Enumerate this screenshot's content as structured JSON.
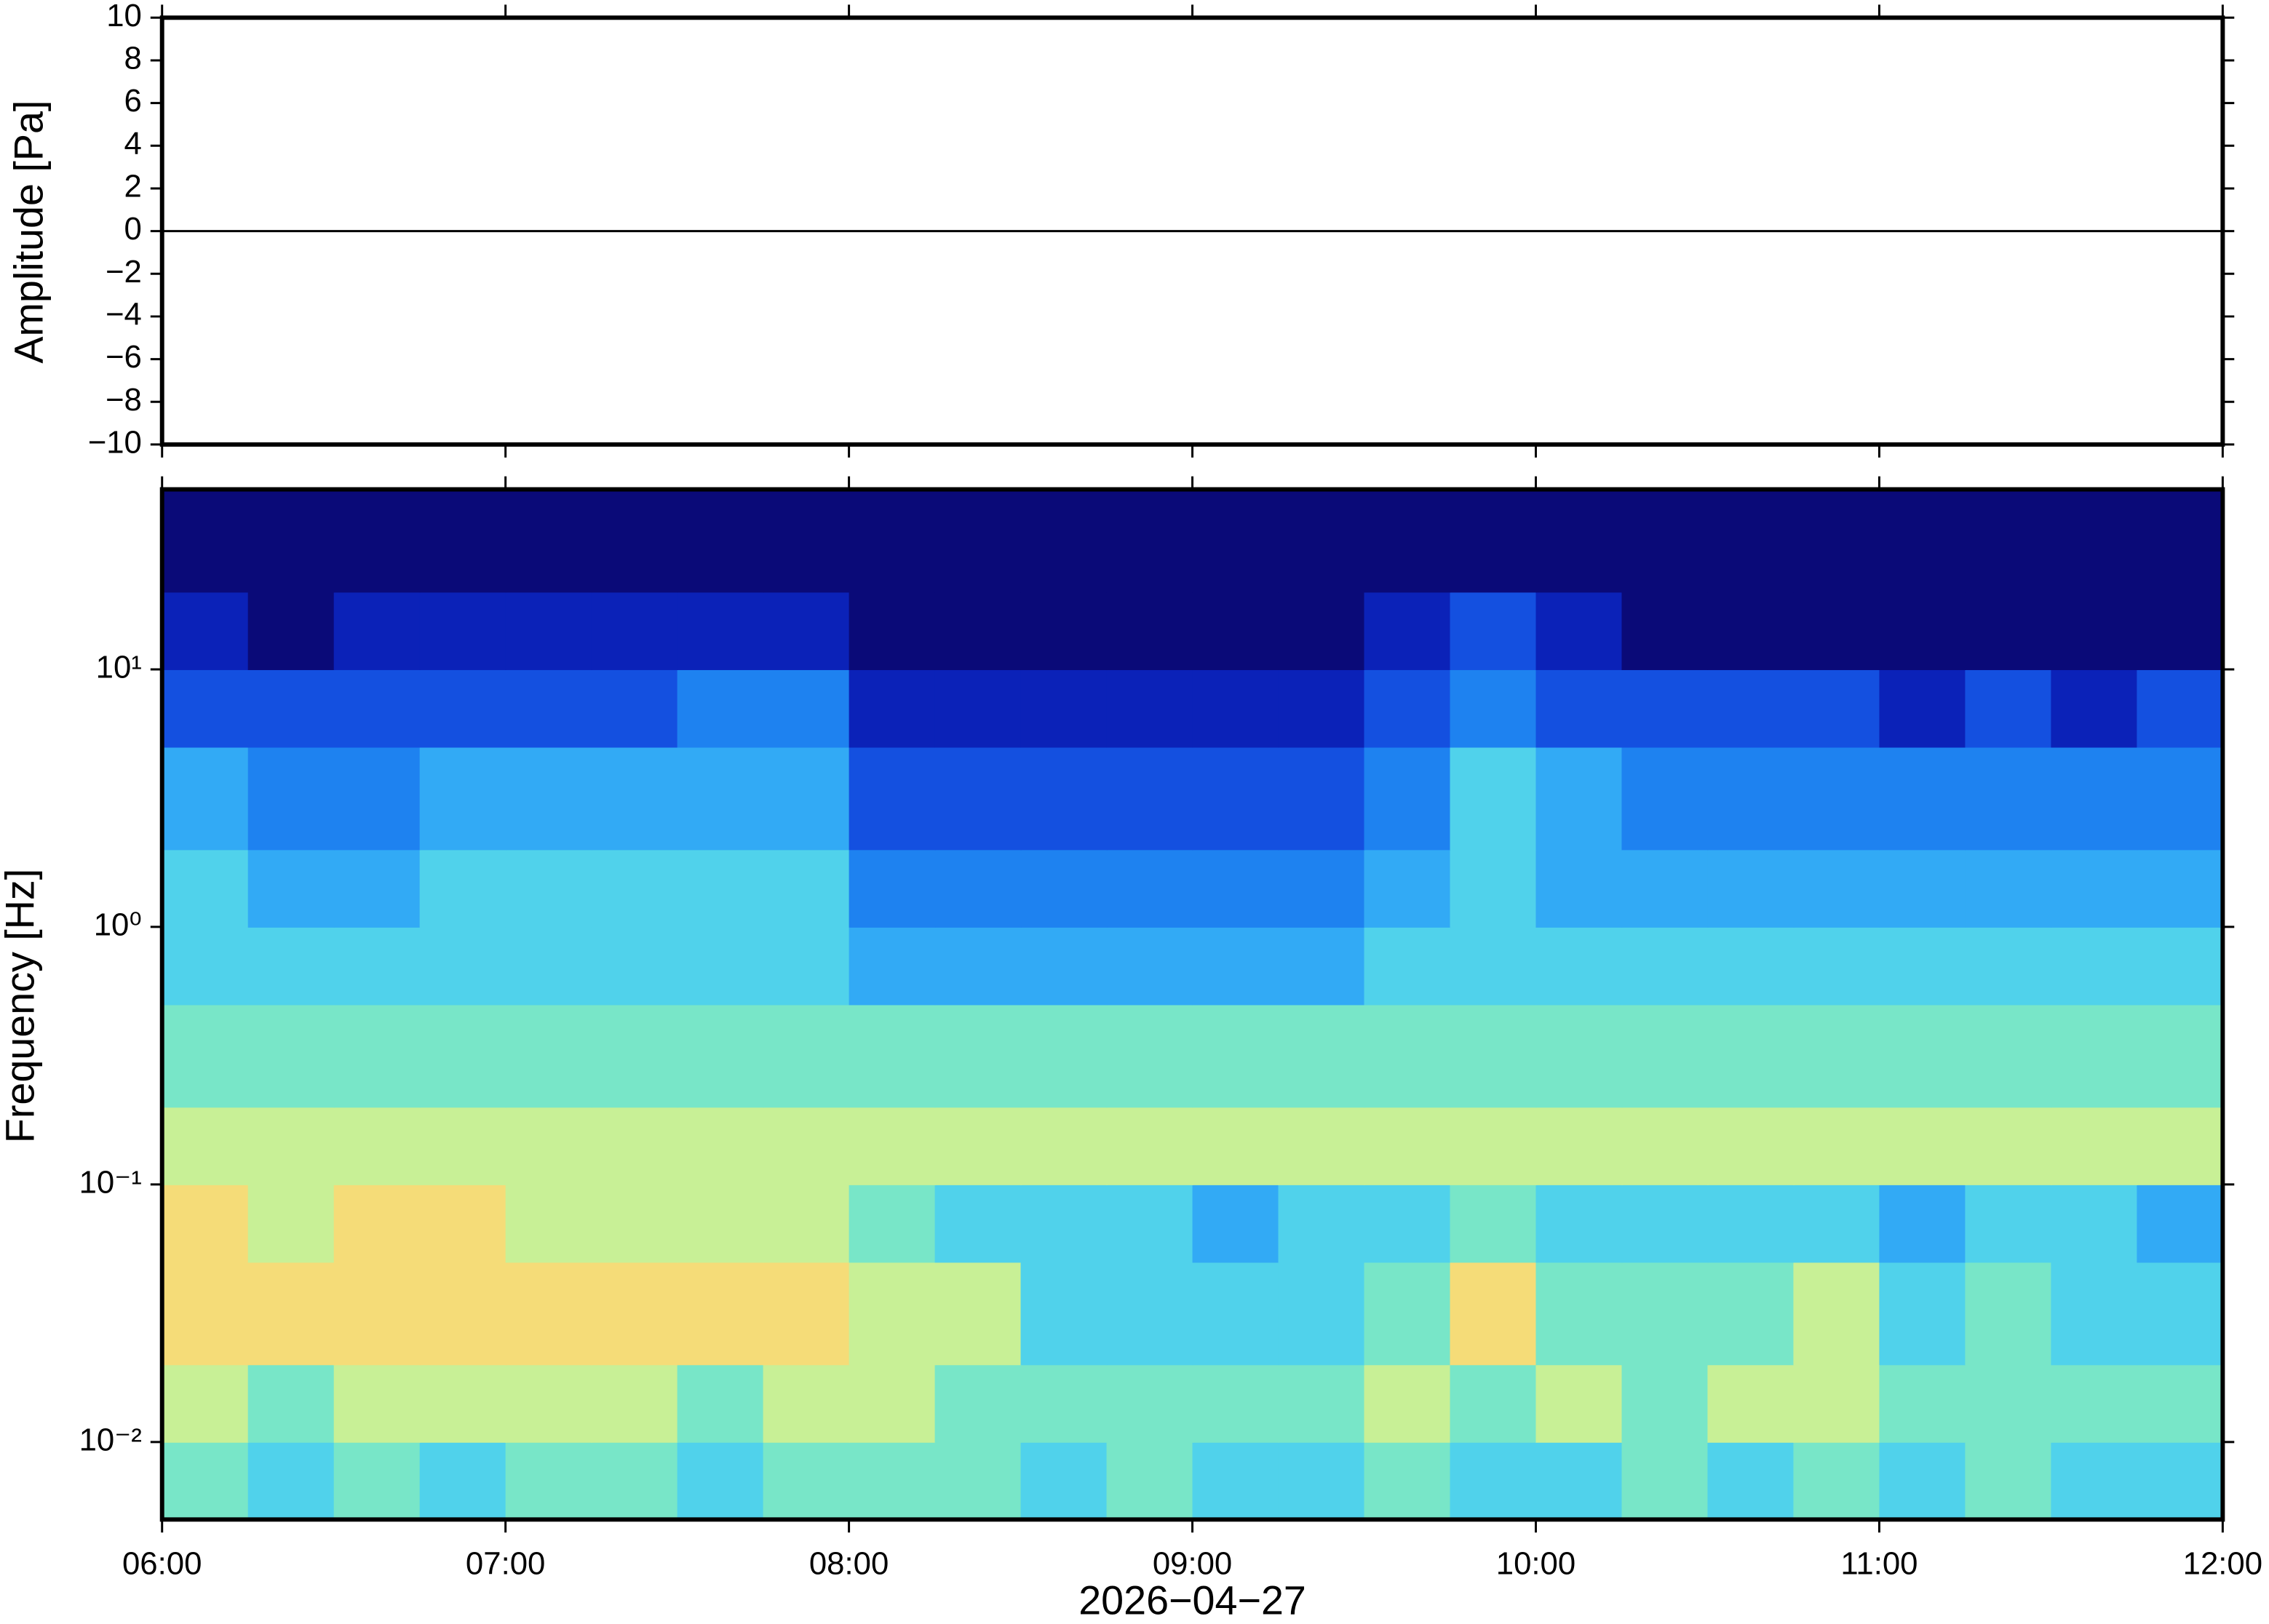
{
  "chart_data": [
    {
      "type": "line",
      "ylabel": "Amplitude [Pa]",
      "color": "#000000",
      "x": [
        6,
        7,
        8,
        9,
        10,
        11,
        12
      ],
      "values": [
        0,
        0,
        0,
        0,
        0,
        0,
        0
      ],
      "xlim": [
        6,
        12
      ],
      "xticks": [
        6,
        7,
        8,
        9,
        10,
        11,
        12
      ],
      "ylim": [
        -10,
        10
      ],
      "yticks": [
        {
          "value": -10,
          "label": "−10"
        },
        {
          "value": -8,
          "label": "−8"
        },
        {
          "value": -6,
          "label": "−6"
        },
        {
          "value": -4,
          "label": "−4"
        },
        {
          "value": -2,
          "label": "−2"
        },
        0,
        2,
        4,
        6,
        8,
        10
      ]
    },
    {
      "type": "heatmap",
      "ylabel": "Frequency [Hz]",
      "xlabel": "2026−04−27",
      "log_y": true,
      "xlim": [
        6,
        12
      ],
      "xticks": [
        {
          "value": 6,
          "label": "06:00"
        },
        {
          "value": 7,
          "label": "07:00"
        },
        {
          "value": 8,
          "label": "08:00"
        },
        {
          "value": 9,
          "label": "09:00"
        },
        {
          "value": 10,
          "label": "10:00"
        },
        {
          "value": 11,
          "label": "11:00"
        },
        {
          "value": 12,
          "label": "12:00"
        }
      ],
      "ylim": [
        0.005,
        50
      ],
      "yticks": [
        {
          "value": 0.01,
          "label": "10⁻²"
        },
        {
          "value": 0.1,
          "label": "10⁻¹"
        },
        {
          "value": 1,
          "label": "10⁰"
        },
        {
          "value": 10,
          "label": "10¹"
        }
      ],
      "x_edges": [
        6,
        6.25,
        6.5,
        6.75,
        7,
        7.25,
        7.5,
        7.75,
        8,
        8.25,
        8.5,
        8.75,
        9,
        9.25,
        9.5,
        9.75,
        10,
        10.25,
        10.5,
        10.75,
        11,
        11.25,
        11.5,
        11.75,
        12
      ],
      "y_edges": [
        0.005,
        0.01,
        0.02,
        0.05,
        0.1,
        0.2,
        0.5,
        1,
        2,
        5,
        10,
        20,
        50
      ],
      "colors": [
        "#0a0a78",
        "#0b22b8",
        "#1450e0",
        "#1e82f0",
        "#32aaf5",
        "#50d2eb",
        "#78e6c8",
        "#c8f096",
        "#f5dc78",
        "#f5b464"
      ],
      "values": [
        [
          6,
          5,
          6,
          5,
          6,
          6,
          5,
          6,
          6,
          6,
          5,
          6,
          5,
          5,
          6,
          5,
          5,
          6,
          5,
          6,
          5,
          6,
          5,
          5
        ],
        [
          7,
          6,
          7,
          7,
          7,
          7,
          6,
          7,
          7,
          6,
          6,
          6,
          6,
          6,
          7,
          6,
          7,
          6,
          7,
          7,
          6,
          6,
          6,
          6
        ],
        [
          8,
          8,
          8,
          8,
          8,
          8,
          8,
          8,
          7,
          7,
          5,
          5,
          5,
          5,
          6,
          8,
          6,
          6,
          6,
          7,
          5,
          6,
          5,
          5
        ],
        [
          8,
          7,
          8,
          8,
          7,
          7,
          7,
          7,
          6,
          5,
          5,
          5,
          4,
          5,
          5,
          6,
          5,
          5,
          5,
          5,
          4,
          5,
          5,
          4
        ],
        [
          7,
          7,
          7,
          7,
          7,
          7,
          7,
          7,
          7,
          7,
          7,
          7,
          7,
          7,
          7,
          7,
          7,
          7,
          7,
          7,
          7,
          7,
          7,
          7
        ],
        [
          6,
          6,
          6,
          6,
          6,
          6,
          6,
          6,
          6,
          6,
          6,
          6,
          6,
          6,
          6,
          6,
          6,
          6,
          6,
          6,
          6,
          6,
          6,
          6
        ],
        [
          5,
          5,
          5,
          5,
          5,
          5,
          5,
          5,
          4,
          4,
          4,
          4,
          4,
          4,
          5,
          5,
          5,
          5,
          5,
          5,
          5,
          5,
          5,
          5
        ],
        [
          5,
          4,
          4,
          5,
          5,
          5,
          5,
          5,
          3,
          3,
          3,
          3,
          3,
          3,
          4,
          5,
          4,
          4,
          4,
          4,
          4,
          4,
          4,
          4
        ],
        [
          4,
          3,
          3,
          4,
          4,
          4,
          4,
          4,
          2,
          2,
          2,
          2,
          2,
          2,
          3,
          5,
          4,
          3,
          3,
          3,
          3,
          3,
          3,
          3
        ],
        [
          2,
          2,
          2,
          2,
          2,
          2,
          3,
          3,
          1,
          1,
          1,
          1,
          1,
          1,
          2,
          3,
          2,
          2,
          2,
          2,
          1,
          2,
          1,
          2
        ],
        [
          1,
          0,
          1,
          1,
          1,
          1,
          1,
          1,
          0,
          0,
          0,
          0,
          0,
          0,
          1,
          2,
          1,
          0,
          0,
          0,
          0,
          0,
          0,
          0
        ],
        [
          0,
          0,
          0,
          0,
          0,
          0,
          0,
          0,
          0,
          0,
          0,
          0,
          0,
          0,
          0,
          0,
          0,
          0,
          0,
          0,
          0,
          0,
          0,
          0
        ]
      ]
    }
  ]
}
